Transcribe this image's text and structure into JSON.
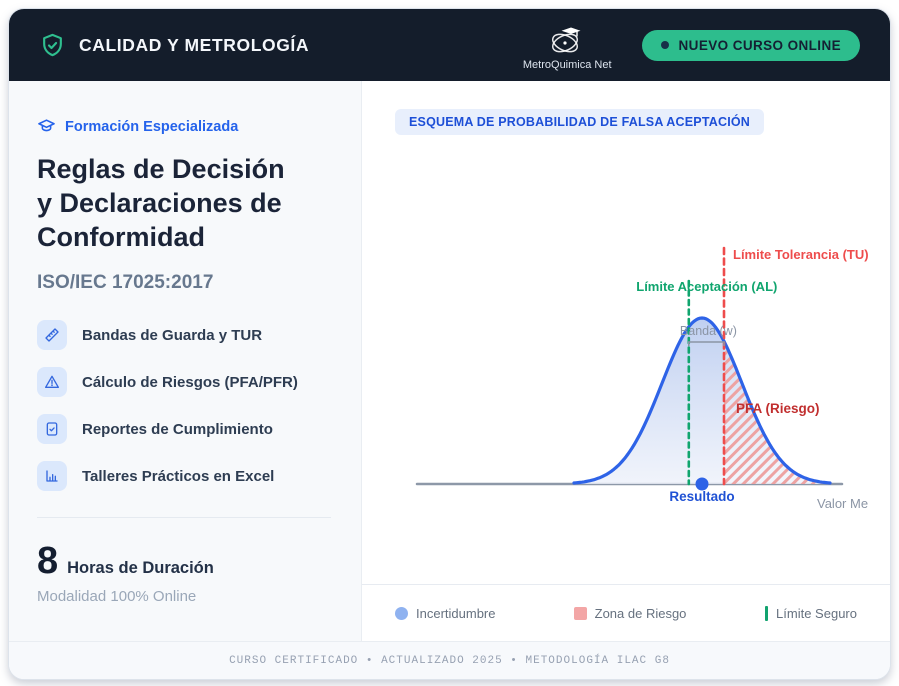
{
  "header": {
    "brand": "CALIDAD Y METROLOGÍA",
    "logo_caption": "MetroQuimica Net",
    "cta_label": "NUEVO CURSO ONLINE",
    "accent_green": "#2dbd8d",
    "bg_color": "#141d2b"
  },
  "left": {
    "kicker": "Formación Especializada",
    "title_lines": [
      "Reglas de Decisión",
      "y Declaraciones de",
      "Conformidad"
    ],
    "subtitle": "ISO/IEC 17025:2017",
    "features": [
      {
        "icon": "ruler-icon",
        "label": "Bandas de Guarda y TUR"
      },
      {
        "icon": "alert-triangle-icon",
        "label": "Cálculo de Riesgos (PFA/PFR)"
      },
      {
        "icon": "file-check-icon",
        "label": "Reportes de Cumplimiento"
      },
      {
        "icon": "bar-chart-icon",
        "label": "Talleres Prácticos en Excel"
      }
    ],
    "duration_number": "8",
    "duration_label": "Horas de Duración",
    "modality": "Modalidad 100% Online"
  },
  "chart_data": {
    "type": "area",
    "subtype": "normal-distribution-false-acceptance-schema",
    "title": "ESQUEMA DE PROBABILIDAD DE FALSA ACEPTACIÓN",
    "xlabel": "Valor Me",
    "curve_color": "#2e63e7",
    "axis_color": "#8d98a8",
    "distribution": {
      "shape": "normal",
      "mean_sigma": 0,
      "sigma": 1,
      "x_range_sigma": [
        -3.2,
        3.2
      ]
    },
    "markers": {
      "acceptance_limit": {
        "label": "Límite Aceptación (AL)",
        "sigma": -0.33,
        "color": "#10a56e",
        "style": "dashed"
      },
      "tolerance_limit": {
        "label": "Límite Tolerancia (TU)",
        "sigma": 0.55,
        "color": "#ee4c4c",
        "style": "dashed"
      },
      "guard_band": {
        "label": "Banda (w)",
        "from_sigma": -0.33,
        "to_sigma": 0.55,
        "color": "#8b95a5"
      },
      "result": {
        "label": "Resultado",
        "sigma": 0,
        "color": "#1f51d4"
      },
      "risk_area": {
        "label": "PFA (Riesgo)",
        "from_sigma": 0.55,
        "to_sigma": 3.2,
        "color": "#c12f2f",
        "hatch_color": "#eda3a3"
      }
    },
    "legend": [
      {
        "swatch": "circle",
        "color": "#8fb2f0",
        "label": "Incertidumbre"
      },
      {
        "swatch": "square",
        "color": "#f3a6a6",
        "label": "Zona de Riesgo"
      },
      {
        "swatch": "bar",
        "color": "#12a36f",
        "label": "Límite Seguro"
      }
    ],
    "grid": false,
    "legend_position": "bottom"
  },
  "footer": {
    "text": "CURSO CERTIFICADO • ACTUALIZADO 2025 • METODOLOGÍA ILAC G8"
  }
}
